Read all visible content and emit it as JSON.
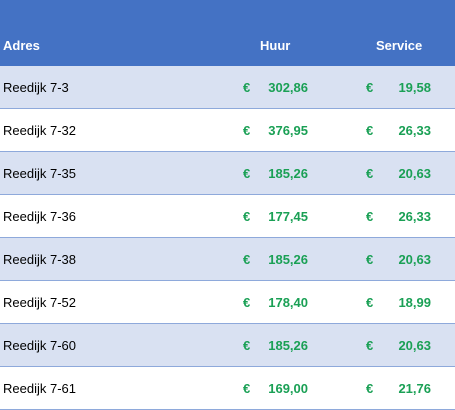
{
  "table": {
    "headers": {
      "adres": "Adres",
      "huur": "Huur",
      "service": "Service"
    },
    "currency": "€",
    "rows": [
      {
        "adres": "Reedijk 7-3",
        "huur": "302,86",
        "service": "19,58"
      },
      {
        "adres": "Reedijk 7-32",
        "huur": "376,95",
        "service": "26,33"
      },
      {
        "adres": "Reedijk 7-35",
        "huur": "185,26",
        "service": "20,63"
      },
      {
        "adres": "Reedijk 7-36",
        "huur": "177,45",
        "service": "26,33"
      },
      {
        "adres": "Reedijk 7-38",
        "huur": "185,26",
        "service": "20,63"
      },
      {
        "adres": "Reedijk 7-52",
        "huur": "178,40",
        "service": "18,99"
      },
      {
        "adres": "Reedijk 7-60",
        "huur": "185,26",
        "service": "20,63"
      },
      {
        "adres": "Reedijk 7-61",
        "huur": "169,00",
        "service": "21,76"
      }
    ]
  },
  "colors": {
    "header_bg": "#4472c4",
    "band_bg": "#d9e1f2",
    "amount_text": "#1aa055"
  }
}
